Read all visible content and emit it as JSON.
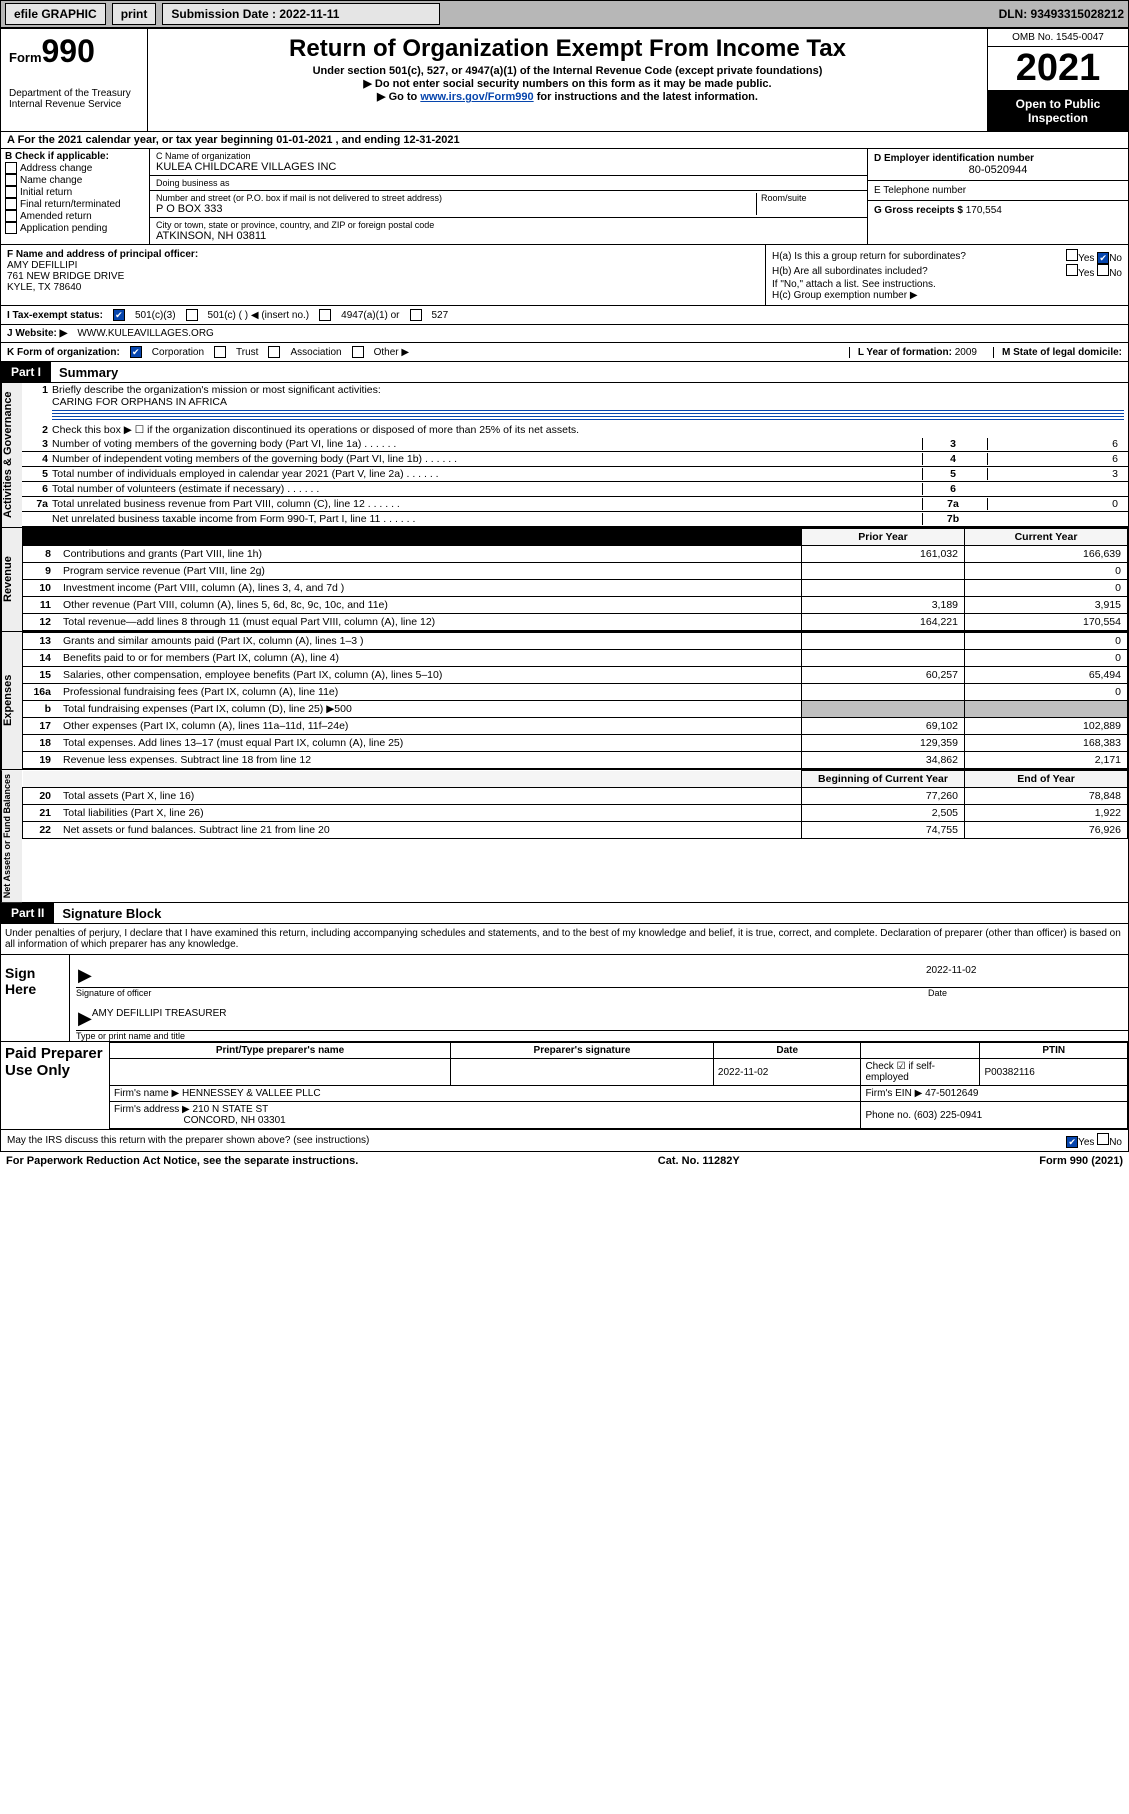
{
  "topbar": {
    "efile": "efile GRAPHIC",
    "print": "print",
    "submission_label": "Submission Date : 2022-11-11",
    "dln": "DLN: 93493315028212"
  },
  "header": {
    "form_prefix": "Form",
    "form_number": "990",
    "dept": "Department of the Treasury\nInternal Revenue Service",
    "title": "Return of Organization Exempt From Income Tax",
    "under": "Under section 501(c), 527, or 4947(a)(1) of the Internal Revenue Code (except private foundations)",
    "note1": "▶ Do not enter social security numbers on this form as it may be made public.",
    "note2_pre": "▶ Go to ",
    "note2_link": "www.irs.gov/Form990",
    "note2_post": " for instructions and the latest information.",
    "omb": "OMB No. 1545-0047",
    "year": "2021",
    "open_public": "Open to Public Inspection"
  },
  "row_a": "A For the 2021 calendar year, or tax year beginning 01-01-2021   , and ending 12-31-2021",
  "section_b": {
    "label": "B Check if applicable:",
    "checks": [
      "Address change",
      "Name change",
      "Initial return",
      "Final return/terminated",
      "Amended return",
      "Application pending"
    ],
    "c_label": "C Name of organization",
    "c_name": "KULEA CHILDCARE VILLAGES INC",
    "dba_label": "Doing business as",
    "dba": "",
    "street_label": "Number and street (or P.O. box if mail is not delivered to street address)",
    "street": "P O BOX 333",
    "room_label": "Room/suite",
    "city_label": "City or town, state or province, country, and ZIP or foreign postal code",
    "city": "ATKINSON, NH  03811",
    "d_label": "D Employer identification number",
    "d_ein": "80-0520944",
    "e_label": "E Telephone number",
    "e_phone": "",
    "g_label": "G Gross receipts $",
    "g_val": "170,554"
  },
  "fgh": {
    "f_label": "F  Name and address of principal officer:",
    "f_name": "AMY DEFILLIPI",
    "f_addr1": "761 NEW BRIDGE DRIVE",
    "f_addr2": "KYLE, TX  78640",
    "ha": "H(a)  Is this a group return for subordinates?",
    "ha_yes": "Yes",
    "ha_no": "No",
    "ha_checked": "No",
    "hb": "H(b)  Are all subordinates included?",
    "hb_yes": "Yes",
    "hb_no": "No",
    "hb_note": "If \"No,\" attach a list. See instructions.",
    "hc": "H(c)  Group exemption number ▶"
  },
  "tax_status": {
    "i_label": "I   Tax-exempt status:",
    "opt1": "501(c)(3)",
    "opt2": "501(c) (  ) ◀ (insert no.)",
    "opt3": "4947(a)(1) or",
    "opt4": "527"
  },
  "website": {
    "j_label": "J   Website: ▶",
    "url": "WWW.KULEAVILLAGES.ORG"
  },
  "k_row": {
    "k_label": "K Form of organization:",
    "opts": [
      "Corporation",
      "Trust",
      "Association",
      "Other ▶"
    ],
    "l_label": "L Year of formation:",
    "l_val": "2009",
    "m_label": "M State of legal domicile:",
    "m_val": ""
  },
  "part1": {
    "label": "Part I",
    "title": "Summary"
  },
  "governance": {
    "sidetab": "Activities & Governance",
    "line1_label": "1",
    "line1_desc": "Briefly describe the organization's mission or most significant activities:",
    "line1_val": "CARING FOR ORPHANS IN AFRICA",
    "line2": "Check this box ▶ ☐  if the organization discontinued its operations or disposed of more than 25% of its net assets.",
    "lines": [
      {
        "n": "3",
        "d": "Number of voting members of the governing body (Part VI, line 1a)",
        "box": "3",
        "v": "6"
      },
      {
        "n": "4",
        "d": "Number of independent voting members of the governing body (Part VI, line 1b)",
        "box": "4",
        "v": "6"
      },
      {
        "n": "5",
        "d": "Total number of individuals employed in calendar year 2021 (Part V, line 2a)",
        "box": "5",
        "v": "3"
      },
      {
        "n": "6",
        "d": "Total number of volunteers (estimate if necessary)",
        "box": "6",
        "v": ""
      },
      {
        "n": "7a",
        "d": "Total unrelated business revenue from Part VIII, column (C), line 12",
        "box": "7a",
        "v": "0"
      },
      {
        "n": "",
        "d": "Net unrelated business taxable income from Form 990-T, Part I, line 11",
        "box": "7b",
        "v": ""
      }
    ]
  },
  "fin": {
    "prior": "Prior Year",
    "current": "Current Year",
    "revenue_tab": "Revenue",
    "expenses_tab": "Expenses",
    "netassets_tab": "Net Assets or Fund Balances",
    "rows": [
      {
        "n": "8",
        "d": "Contributions and grants (Part VIII, line 1h)",
        "p": "161,032",
        "c": "166,639"
      },
      {
        "n": "9",
        "d": "Program service revenue (Part VIII, line 2g)",
        "p": "",
        "c": "0"
      },
      {
        "n": "10",
        "d": "Investment income (Part VIII, column (A), lines 3, 4, and 7d )",
        "p": "",
        "c": "0"
      },
      {
        "n": "11",
        "d": "Other revenue (Part VIII, column (A), lines 5, 6d, 8c, 9c, 10c, and 11e)",
        "p": "3,189",
        "c": "3,915"
      },
      {
        "n": "12",
        "d": "Total revenue—add lines 8 through 11 (must equal Part VIII, column (A), line 12)",
        "p": "164,221",
        "c": "170,554"
      }
    ],
    "exp_rows": [
      {
        "n": "13",
        "d": "Grants and similar amounts paid (Part IX, column (A), lines 1–3 )",
        "p": "",
        "c": "0"
      },
      {
        "n": "14",
        "d": "Benefits paid to or for members (Part IX, column (A), line 4)",
        "p": "",
        "c": "0"
      },
      {
        "n": "15",
        "d": "Salaries, other compensation, employee benefits (Part IX, column (A), lines 5–10)",
        "p": "60,257",
        "c": "65,494"
      },
      {
        "n": "16a",
        "d": "Professional fundraising fees (Part IX, column (A), line 11e)",
        "p": "",
        "c": "0"
      },
      {
        "n": "b",
        "d": "Total fundraising expenses (Part IX, column (D), line 25) ▶500",
        "p": "grey",
        "c": "grey"
      },
      {
        "n": "17",
        "d": "Other expenses (Part IX, column (A), lines 11a–11d, 11f–24e)",
        "p": "69,102",
        "c": "102,889"
      },
      {
        "n": "18",
        "d": "Total expenses. Add lines 13–17 (must equal Part IX, column (A), line 25)",
        "p": "129,359",
        "c": "168,383"
      },
      {
        "n": "19",
        "d": "Revenue less expenses. Subtract line 18 from line 12",
        "p": "34,862",
        "c": "2,171"
      }
    ],
    "begin": "Beginning of Current Year",
    "end": "End of Year",
    "na_rows": [
      {
        "n": "20",
        "d": "Total assets (Part X, line 16)",
        "p": "77,260",
        "c": "78,848"
      },
      {
        "n": "21",
        "d": "Total liabilities (Part X, line 26)",
        "p": "2,505",
        "c": "1,922"
      },
      {
        "n": "22",
        "d": "Net assets or fund balances. Subtract line 21 from line 20",
        "p": "74,755",
        "c": "76,926"
      }
    ]
  },
  "part2": {
    "label": "Part II",
    "title": "Signature Block",
    "declaration": "Under penalties of perjury, I declare that I have examined this return, including accompanying schedules and statements, and to the best of my knowledge and belief, it is true, correct, and complete. Declaration of preparer (other than officer) is based on all information of which preparer has any knowledge."
  },
  "sign": {
    "left": "Sign Here",
    "sig_label": "Signature of officer",
    "date": "2022-11-02",
    "date_label": "Date",
    "name": "AMY DEFILLIPI TREASURER",
    "name_label": "Type or print name and title"
  },
  "paid": {
    "left": "Paid Preparer Use Only",
    "hdr": [
      "Print/Type preparer's name",
      "Preparer's signature",
      "Date",
      "",
      "PTIN"
    ],
    "r1_date": "2022-11-02",
    "r1_check": "Check ☑ if self-employed",
    "r1_ptin": "P00382116",
    "firm_name_lbl": "Firm's name    ▶",
    "firm_name": "HENNESSEY & VALLEE PLLC",
    "firm_ein_lbl": "Firm's EIN ▶",
    "firm_ein": "47-5012649",
    "firm_addr_lbl": "Firm's address ▶",
    "firm_addr1": "210 N STATE ST",
    "firm_addr2": "CONCORD, NH  03301",
    "phone_lbl": "Phone no.",
    "phone": "(603) 225-0941"
  },
  "discuss": {
    "q": "May the IRS discuss this return with the preparer shown above? (see instructions)",
    "yes": "Yes",
    "no": "No"
  },
  "footer": {
    "left": "For Paperwork Reduction Act Notice, see the separate instructions.",
    "mid": "Cat. No. 11282Y",
    "right": "Form 990 (2021)"
  },
  "colors": {
    "link": "#0645ad",
    "topbar_bg": "#b7b7b7",
    "btn_bg": "#e5e5e5",
    "grey_cell": "#bfbfbf"
  }
}
